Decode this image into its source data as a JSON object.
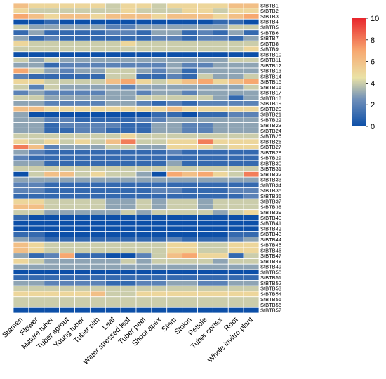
{
  "chart_data": {
    "type": "heatmap",
    "title": "",
    "xlabel": "",
    "ylabel": "",
    "columns": [
      "Stamen",
      "Flower",
      "Mature tuber",
      "Tuber sprout",
      "Young tuber",
      "Tuber pith",
      "Leaf",
      "Water stressed leaf",
      "Tuber peel",
      "Shoot apex",
      "Stem",
      "Stolon",
      "Petiole",
      "Tuber cortex",
      "Root",
      "Whole invitro plant"
    ],
    "rows": [
      "StBTB1",
      "StBTB2",
      "StBTB3",
      "StBTB4",
      "StBTB5",
      "StBTB6",
      "StBTB7",
      "StBTB8",
      "StBTB9",
      "StBTB10",
      "StBTB11",
      "StBTB12",
      "StBTB13",
      "StBTB14",
      "StBTB15",
      "StBTB16",
      "StBTB17",
      "StBTB18",
      "StBTB19",
      "StBTB20",
      "StBTB21",
      "StBTB22",
      "StBTB23",
      "StBTB24",
      "StBTB25",
      "StBTB26",
      "StBTB27",
      "StBTB28",
      "StBTB29",
      "StBTB30",
      "StBTB31",
      "StBTB32",
      "StBTB33",
      "StBTB34",
      "StBTB35",
      "StBTB36",
      "StBTB37",
      "StBTB38",
      "StBTB39",
      "StBTB40",
      "StBTB41",
      "StBTB42",
      "StBTB43",
      "StBTB44",
      "StBTB45",
      "StBTB46",
      "StBTB47",
      "StBTB48",
      "StBTB49",
      "StBTB50",
      "StBTB51",
      "StBTB52",
      "StBTB53",
      "StBTB54",
      "StBTB55",
      "StBTB56",
      "StBTB57"
    ],
    "values": [
      [
        6,
        5,
        5,
        5,
        5,
        5,
        4,
        5,
        5,
        4,
        5,
        5,
        5,
        5,
        6,
        6
      ],
      [
        5,
        4,
        4,
        4,
        4,
        4,
        4,
        5,
        4,
        4,
        4,
        5,
        5,
        4,
        5,
        5
      ],
      [
        7,
        6,
        5,
        6,
        6,
        5,
        6,
        6,
        6,
        5,
        6,
        6,
        6,
        5,
        6,
        7
      ],
      [
        0,
        0,
        1,
        0,
        0,
        0,
        0,
        0,
        0,
        0,
        0,
        0,
        0,
        1,
        1,
        0
      ],
      [
        4,
        3,
        3,
        3,
        3,
        3,
        2,
        2,
        3,
        3,
        3,
        3,
        3,
        3,
        4,
        4
      ],
      [
        1,
        3,
        1,
        1,
        1,
        1,
        2,
        2,
        1,
        3,
        3,
        1,
        2,
        1,
        3,
        1
      ],
      [
        3,
        1,
        2,
        1,
        1,
        1,
        1,
        1,
        1,
        2,
        2,
        1,
        2,
        2,
        1,
        3
      ],
      [
        5,
        4,
        4,
        4,
        4,
        4,
        4,
        5,
        4,
        4,
        4,
        4,
        4,
        4,
        4,
        4
      ],
      [
        4,
        4,
        4,
        4,
        4,
        4,
        4,
        4,
        4,
        4,
        4,
        4,
        4,
        4,
        4,
        5
      ],
      [
        0,
        0,
        0,
        0,
        0,
        0,
        0,
        0,
        0,
        0,
        0,
        0,
        0,
        0,
        0,
        0
      ],
      [
        4,
        3,
        4,
        3,
        3,
        3,
        3,
        3,
        3,
        3,
        3,
        3,
        3,
        3,
        4,
        4
      ],
      [
        3,
        3,
        1,
        2,
        2,
        2,
        2,
        2,
        2,
        2,
        3,
        2,
        2,
        3,
        3,
        3
      ],
      [
        7,
        4,
        3,
        2,
        3,
        3,
        4,
        4,
        3,
        2,
        3,
        1,
        3,
        3,
        3,
        3
      ],
      [
        2,
        1,
        1,
        1,
        1,
        1,
        4,
        4,
        1,
        1,
        2,
        1,
        4,
        3,
        3,
        4
      ],
      [
        5,
        5,
        4,
        4,
        4,
        4,
        6,
        7,
        5,
        4,
        5,
        6,
        7,
        5,
        6,
        7
      ],
      [
        4,
        2,
        4,
        3,
        3,
        3,
        3,
        2,
        3,
        3,
        3,
        3,
        3,
        3,
        3,
        4
      ],
      [
        2,
        3,
        2,
        2,
        2,
        2,
        3,
        3,
        2,
        3,
        3,
        2,
        3,
        3,
        3,
        3
      ],
      [
        4,
        4,
        3,
        3,
        3,
        3,
        3,
        3,
        4,
        4,
        4,
        4,
        4,
        3,
        1,
        3
      ],
      [
        3,
        3,
        2,
        2,
        2,
        2,
        3,
        3,
        2,
        1,
        2,
        1,
        2,
        2,
        2,
        2
      ],
      [
        6,
        6,
        5,
        5,
        5,
        5,
        5,
        5,
        5,
        5,
        6,
        5,
        5,
        5,
        5,
        5
      ],
      [
        3,
        0,
        0,
        0,
        0,
        0,
        0,
        0,
        0,
        1,
        1,
        0,
        1,
        1,
        2,
        2
      ],
      [
        3,
        3,
        2,
        2,
        1,
        1,
        1,
        1,
        2,
        2,
        3,
        3,
        3,
        3,
        3,
        3
      ],
      [
        3,
        3,
        1,
        2,
        2,
        2,
        2,
        1,
        1,
        3,
        3,
        2,
        2,
        3,
        3,
        3
      ],
      [
        3,
        3,
        1,
        1,
        2,
        2,
        1,
        1,
        1,
        3,
        3,
        2,
        2,
        3,
        3,
        3
      ],
      [
        4,
        4,
        4,
        4,
        4,
        4,
        4,
        5,
        4,
        4,
        4,
        4,
        4,
        4,
        4,
        4
      ],
      [
        5,
        4,
        5,
        4,
        5,
        4,
        6,
        8,
        4,
        4,
        5,
        5,
        8,
        5,
        5,
        5
      ],
      [
        8,
        6,
        2,
        3,
        3,
        3,
        4,
        4,
        3,
        3,
        5,
        5,
        5,
        4,
        5,
        5
      ],
      [
        3,
        2,
        1,
        1,
        1,
        1,
        1,
        1,
        1,
        1,
        2,
        1,
        1,
        1,
        1,
        1
      ],
      [
        2,
        1,
        1,
        1,
        1,
        1,
        1,
        1,
        1,
        1,
        1,
        1,
        1,
        1,
        1,
        1
      ],
      [
        3,
        3,
        1,
        1,
        1,
        1,
        1,
        1,
        1,
        1,
        3,
        1,
        1,
        1,
        1,
        1
      ],
      [
        4,
        4,
        4,
        4,
        4,
        4,
        4,
        4,
        4,
        4,
        4,
        4,
        4,
        4,
        4,
        4
      ],
      [
        0,
        4,
        6,
        6,
        4,
        5,
        4,
        4,
        3,
        0,
        7,
        6,
        7,
        5,
        4,
        8
      ],
      [
        3,
        3,
        3,
        3,
        3,
        3,
        3,
        3,
        3,
        3,
        3,
        3,
        3,
        3,
        3,
        3
      ],
      [
        2,
        2,
        1,
        1,
        1,
        1,
        1,
        1,
        1,
        1,
        1,
        1,
        1,
        1,
        1,
        1
      ],
      [
        2,
        2,
        1,
        1,
        1,
        1,
        1,
        1,
        1,
        2,
        2,
        1,
        1,
        1,
        2,
        2
      ],
      [
        1,
        1,
        1,
        1,
        1,
        1,
        1,
        1,
        1,
        1,
        1,
        1,
        1,
        1,
        1,
        2
      ],
      [
        5,
        5,
        4,
        4,
        4,
        4,
        3,
        3,
        4,
        3,
        4,
        4,
        3,
        4,
        4,
        4
      ],
      [
        6,
        6,
        4,
        4,
        4,
        4,
        3,
        3,
        4,
        3,
        4,
        4,
        3,
        4,
        4,
        4
      ],
      [
        4,
        4,
        3,
        3,
        3,
        3,
        3,
        4,
        3,
        4,
        4,
        4,
        4,
        3,
        4,
        5
      ],
      [
        1,
        0,
        0,
        0,
        0,
        0,
        0,
        0,
        0,
        0,
        0,
        0,
        0,
        0,
        0,
        0
      ],
      [
        0,
        0,
        0,
        0,
        0,
        0,
        0,
        0,
        0,
        0,
        0,
        0,
        0,
        0,
        0,
        0
      ],
      [
        0,
        0,
        0,
        0,
        0,
        0,
        0,
        0,
        0,
        0,
        0,
        0,
        0,
        0,
        0,
        0
      ],
      [
        1,
        1,
        0,
        0,
        0,
        0,
        0,
        0,
        0,
        0,
        0,
        0,
        0,
        0,
        1,
        1
      ],
      [
        3,
        2,
        1,
        1,
        1,
        1,
        1,
        1,
        1,
        1,
        2,
        1,
        1,
        1,
        2,
        3
      ],
      [
        6,
        5,
        4,
        4,
        4,
        4,
        4,
        4,
        4,
        4,
        5,
        5,
        4,
        4,
        5,
        5
      ],
      [
        6,
        5,
        4,
        4,
        4,
        4,
        4,
        4,
        4,
        4,
        5,
        5,
        4,
        4,
        5,
        5
      ],
      [
        3,
        1,
        2,
        7,
        1,
        1,
        0,
        0,
        2,
        4,
        6,
        7,
        5,
        5,
        1,
        4
      ],
      [
        5,
        4,
        3,
        3,
        3,
        3,
        3,
        4,
        3,
        4,
        4,
        4,
        4,
        3,
        4,
        4
      ],
      [
        3,
        3,
        3,
        3,
        3,
        3,
        3,
        3,
        3,
        3,
        3,
        3,
        3,
        3,
        3,
        3
      ],
      [
        0,
        0,
        0,
        0,
        0,
        0,
        0,
        0,
        0,
        0,
        0,
        0,
        0,
        0,
        0,
        0
      ],
      [
        1,
        1,
        1,
        1,
        1,
        1,
        1,
        1,
        1,
        1,
        1,
        1,
        1,
        1,
        1,
        1
      ],
      [
        3,
        3,
        2,
        2,
        2,
        2,
        1,
        1,
        2,
        2,
        3,
        3,
        2,
        2,
        3,
        3
      ],
      [
        4,
        4,
        4,
        4,
        4,
        4,
        4,
        4,
        4,
        4,
        4,
        4,
        4,
        4,
        4,
        4
      ],
      [
        5,
        5,
        5,
        5,
        5,
        6,
        4,
        4,
        5,
        5,
        5,
        5,
        5,
        5,
        5,
        5
      ],
      [
        4,
        4,
        4,
        4,
        4,
        4,
        4,
        4,
        4,
        4,
        4,
        4,
        4,
        4,
        4,
        4
      ],
      [
        4,
        4,
        4,
        4,
        4,
        4,
        4,
        4,
        4,
        4,
        4,
        4,
        4,
        4,
        4,
        4
      ],
      [
        0,
        0,
        0,
        0,
        0,
        0,
        0,
        0,
        0,
        0,
        0,
        0,
        0,
        0,
        0,
        0
      ]
    ],
    "colorbar": {
      "min": 0,
      "max": 10,
      "ticks": [
        "10",
        "8",
        "6",
        "4",
        "2",
        "0"
      ],
      "colors": [
        "#0c4fa8",
        "#6f8fb9",
        "#eae2a6",
        "#f7a870",
        "#e8262c"
      ]
    }
  }
}
